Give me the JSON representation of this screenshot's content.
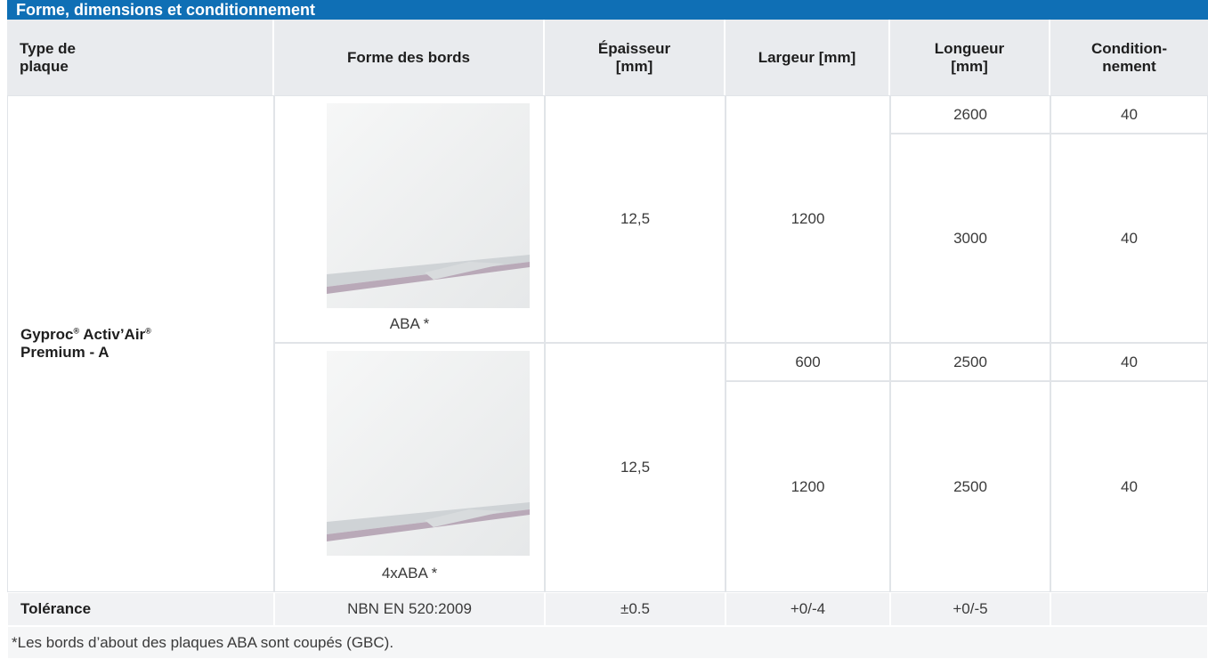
{
  "title": "Forme, dimensions et conditionnement",
  "header": [
    "Type de plaque",
    "Forme des bords",
    "Épaisseur [mm]",
    "Largeur [mm]",
    "Longueur [mm]",
    "Condition-nement"
  ],
  "product": {
    "name_parts": [
      "Gyproc",
      "®",
      " Activ’Air",
      "®",
      "Premium - A"
    ]
  },
  "groups": [
    {
      "edge": "ABA *",
      "thickness": "12,5",
      "width": "1200",
      "rows": [
        {
          "length": "2600",
          "packaging": "40"
        },
        {
          "length": "3000",
          "packaging": "40"
        }
      ]
    },
    {
      "edge": "4xABA *",
      "thickness": "12,5",
      "rows": [
        {
          "width": "600",
          "length": "2500",
          "packaging": "40"
        },
        {
          "width": "1200",
          "length": "2500",
          "packaging": "40"
        }
      ]
    }
  ],
  "tolerance": {
    "label": "Tolérance",
    "values": [
      "NBN EN 520:2009",
      "±0.5",
      "+0/-4",
      "+0/-5"
    ]
  },
  "footnote": "*Les bords d’about des plaques ABA sont coupés (GBC)."
}
